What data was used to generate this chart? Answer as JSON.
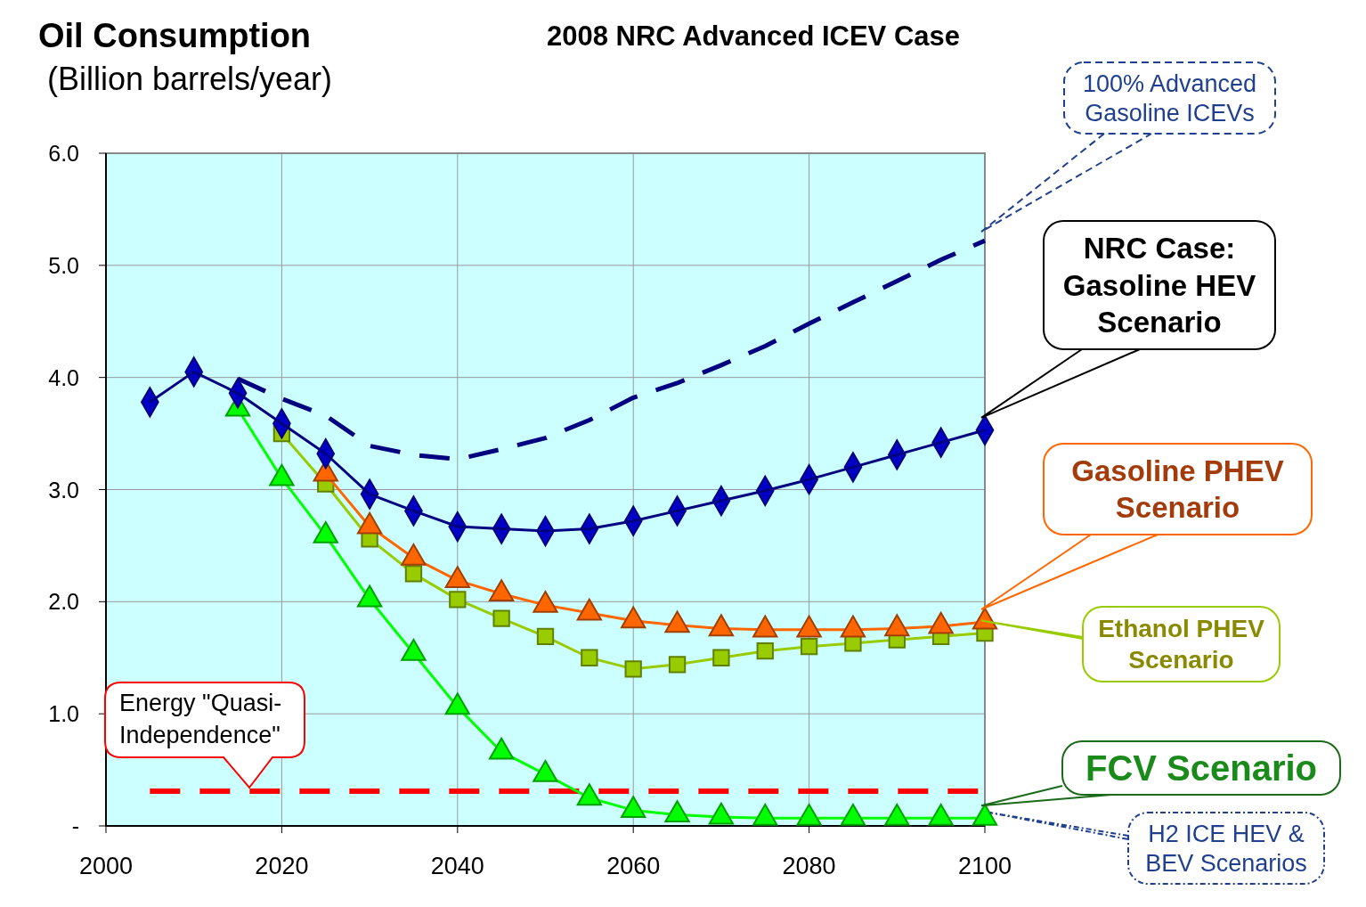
{
  "chart_data": {
    "type": "line",
    "title": "2008 NRC Advanced ICEV Case",
    "ylabel": "Oil Consumption",
    "subtitle": "(Billion barrels/year)",
    "x": [
      2005,
      2010,
      2015,
      2020,
      2025,
      2030,
      2035,
      2040,
      2045,
      2050,
      2055,
      2060,
      2065,
      2070,
      2075,
      2080,
      2085,
      2090,
      2095,
      2100
    ],
    "xlim": [
      2000,
      2100
    ],
    "xticks": [
      2000,
      2020,
      2040,
      2060,
      2080,
      2100
    ],
    "ylim": [
      0,
      6
    ],
    "yticks": [
      {
        "value": 0,
        "label": "-"
      },
      {
        "value": 1,
        "label": "1.0"
      },
      {
        "value": 2,
        "label": "2.0"
      },
      {
        "value": 3,
        "label": "3.0"
      },
      {
        "value": 4,
        "label": "4.0"
      },
      {
        "value": 5,
        "label": "5.0"
      },
      {
        "value": 6,
        "label": "6.0"
      }
    ],
    "grid": true,
    "legend": "right",
    "series": [
      {
        "name": "100% Advanced Gasoline ICEVs",
        "color": "#000080",
        "marker": "none",
        "line_style": "dashed",
        "values": [
          null,
          null,
          3.99,
          3.81,
          3.66,
          3.39,
          3.31,
          3.27,
          3.36,
          3.46,
          3.62,
          3.82,
          3.95,
          4.11,
          4.28,
          4.48,
          4.67,
          4.86,
          5.05,
          5.22
        ]
      },
      {
        "name": "NRC  Case: Gasoline HEV Scenario",
        "color": "#000080",
        "marker": "diamond",
        "line_style": "solid",
        "values": [
          3.78,
          4.05,
          3.86,
          3.59,
          3.32,
          2.96,
          2.81,
          2.67,
          2.65,
          2.63,
          2.65,
          2.72,
          2.81,
          2.9,
          2.99,
          3.09,
          3.2,
          3.31,
          3.42,
          3.53
        ]
      },
      {
        "name": "Gasoline PHEV Scenario",
        "color": "#ff6600",
        "marker": "triangle",
        "line_style": "solid",
        "values": [
          null,
          null,
          null,
          null,
          3.14,
          2.67,
          2.39,
          2.19,
          2.07,
          1.97,
          1.9,
          1.83,
          1.79,
          1.76,
          1.75,
          1.75,
          1.75,
          1.76,
          1.78,
          1.82
        ]
      },
      {
        "name": "Ethanol PHEV Scenario",
        "color": "#99cc00",
        "marker": "square",
        "line_style": "solid",
        "values": [
          null,
          null,
          null,
          3.5,
          3.05,
          2.56,
          2.25,
          2.02,
          1.85,
          1.69,
          1.5,
          1.4,
          1.44,
          1.5,
          1.56,
          1.6,
          1.63,
          1.66,
          1.69,
          1.72
        ]
      },
      {
        "name": "FCV Scenario",
        "color": "#00ff00",
        "marker": "triangle",
        "line_style": "solid",
        "values": [
          null,
          null,
          3.72,
          3.1,
          2.59,
          2.02,
          1.54,
          1.06,
          0.66,
          0.46,
          0.25,
          0.14,
          0.1,
          0.08,
          0.07,
          0.07,
          0.07,
          0.07,
          0.07,
          0.07
        ]
      }
    ],
    "ref_lines": [
      {
        "axis": "y",
        "value": 0.31,
        "label": "Energy \"Quasi-Independence\"",
        "color": "#ff0000",
        "line_style": "dashed"
      }
    ],
    "annotations": [
      "H2 ICE HEV & BEV Scenarios"
    ]
  }
}
